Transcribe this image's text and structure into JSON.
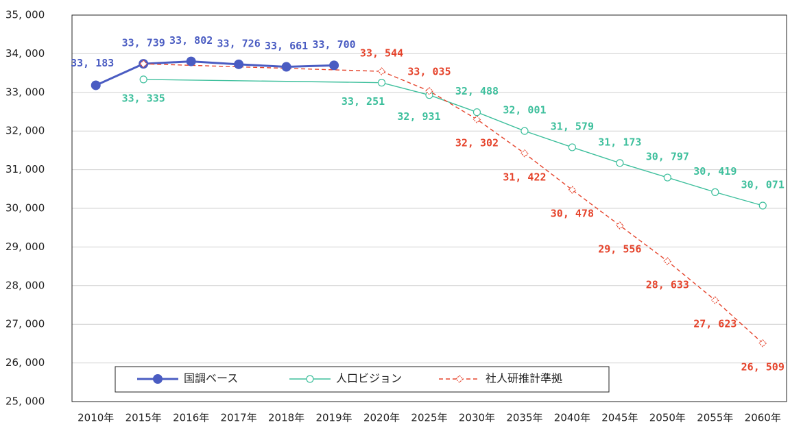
{
  "chart_data": {
    "type": "line",
    "categories": [
      "2010年",
      "2015年",
      "2016年",
      "2017年",
      "2018年",
      "2019年",
      "2020年",
      "2025年",
      "2030年",
      "2035年",
      "2040年",
      "2045年",
      "2050年",
      "2055年",
      "2060年"
    ],
    "series": [
      {
        "name": "国調ベース",
        "color": "#4a5cc2",
        "marker": "filled-circle",
        "line": "solid",
        "values": [
          33183,
          33739,
          33802,
          33726,
          33661,
          33700,
          null,
          null,
          null,
          null,
          null,
          null,
          null,
          null,
          null
        ],
        "value_labels": [
          "33, 183",
          "33, 739",
          "33, 802",
          "33, 726",
          "33, 661",
          "33, 700",
          null,
          null,
          null,
          null,
          null,
          null,
          null,
          null,
          null
        ]
      },
      {
        "name": "人口ビジョン",
        "color": "#3dbf9c",
        "marker": "open-circle",
        "line": "solid",
        "values": [
          null,
          33335,
          null,
          null,
          null,
          null,
          33251,
          32931,
          32488,
          32001,
          31579,
          31173,
          30797,
          30419,
          30071
        ],
        "value_labels": [
          null,
          "33, 335",
          null,
          null,
          null,
          null,
          "33, 251",
          "32, 931",
          "32, 488",
          "32, 001",
          "31, 579",
          "31, 173",
          "30, 797",
          "30, 419",
          "30, 071"
        ]
      },
      {
        "name": "社人研推計準拠",
        "color": "#e5432b",
        "marker": "open-diamond",
        "line": "dashed",
        "values": [
          null,
          33739,
          null,
          null,
          null,
          null,
          33544,
          33035,
          32302,
          31422,
          30478,
          29556,
          28633,
          27623,
          26509
        ],
        "value_labels": [
          null,
          null,
          null,
          null,
          null,
          null,
          "33, 544",
          "33, 035",
          "32, 302",
          "31, 422",
          "30, 478",
          "29, 556",
          "28, 633",
          "27, 623",
          "26, 509"
        ]
      }
    ],
    "ylim": [
      25000,
      35000
    ],
    "yticks": [
      {
        "value": 25000,
        "label": "25, 000"
      },
      {
        "value": 26000,
        "label": "26, 000"
      },
      {
        "value": 27000,
        "label": "27, 000"
      },
      {
        "value": 28000,
        "label": "28, 000"
      },
      {
        "value": 29000,
        "label": "29, 000"
      },
      {
        "value": 30000,
        "label": "30, 000"
      },
      {
        "value": 31000,
        "label": "31, 000"
      },
      {
        "value": 32000,
        "label": "32, 000"
      },
      {
        "value": 33000,
        "label": "33, 000"
      },
      {
        "value": 34000,
        "label": "34, 000"
      },
      {
        "value": 35000,
        "label": "35, 000"
      }
    ],
    "grid": true,
    "legend": "bottom"
  }
}
